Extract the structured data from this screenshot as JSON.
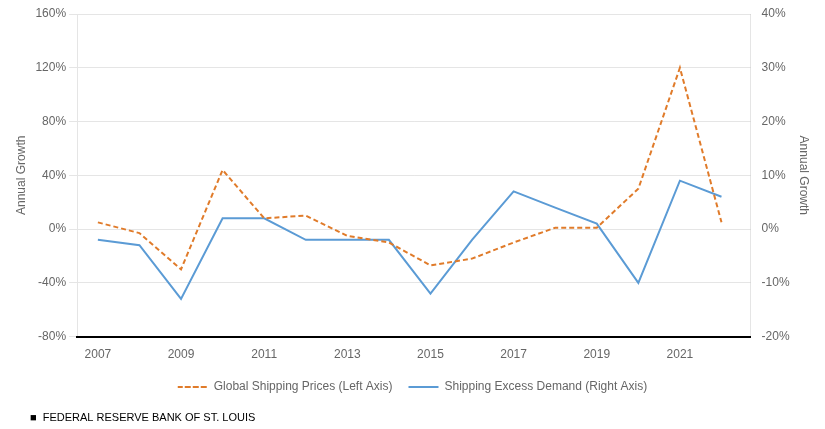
{
  "chart_data": {
    "type": "line",
    "x": [
      2007,
      2008,
      2009,
      2010,
      2011,
      2012,
      2013,
      2014,
      2015,
      2016,
      2017,
      2018,
      2019,
      2020,
      2021,
      2022
    ],
    "xlim": [
      2006.5,
      2022.7
    ],
    "xticks": [
      2007,
      2009,
      2011,
      2013,
      2015,
      2017,
      2019,
      2021
    ],
    "series": [
      {
        "name": "Global Shipping Prices (Left Axis)",
        "color": "#E07B2A",
        "line_style": "dashed",
        "axis": "y",
        "values": [
          5,
          -3,
          -30,
          44,
          8,
          10,
          -5,
          -10,
          -27,
          -22,
          -10,
          1,
          1,
          30,
          120,
          5
        ]
      },
      {
        "name": "Shipping Excess Demand (Right Axis)",
        "color": "#5B9BD5",
        "line_style": "solid",
        "axis": "y2",
        "values": [
          -2,
          -3,
          -13,
          2,
          2,
          -2,
          -2,
          -2,
          -12,
          -2,
          7,
          4,
          1,
          -10,
          9,
          6
        ]
      }
    ],
    "ylabel": "Annual Growth",
    "y2label": "Annual Growth",
    "ylim": [
      -80,
      160
    ],
    "yticks": [
      {
        "value": -80,
        "label": "-80%"
      },
      {
        "value": -40,
        "label": "-40%"
      },
      {
        "value": 0,
        "label": "0%"
      },
      {
        "value": 40,
        "label": "40%"
      },
      {
        "value": 80,
        "label": "80%"
      },
      {
        "value": 120,
        "label": "120%"
      },
      {
        "value": 160,
        "label": "160%"
      }
    ],
    "y2lim": [
      -20,
      40
    ],
    "y2ticks": [
      {
        "value": -20,
        "label": "-20%"
      },
      {
        "value": -10,
        "label": "-10%"
      },
      {
        "value": 0,
        "label": "0%"
      },
      {
        "value": 10,
        "label": "10%"
      },
      {
        "value": 20,
        "label": "20%"
      },
      {
        "value": 30,
        "label": "30%"
      },
      {
        "value": 40,
        "label": "40%"
      }
    ],
    "grid": true,
    "legend": "bottom",
    "annotations": [
      "■  FEDERAL RESERVE BANK OF ST. LOUIS"
    ]
  }
}
